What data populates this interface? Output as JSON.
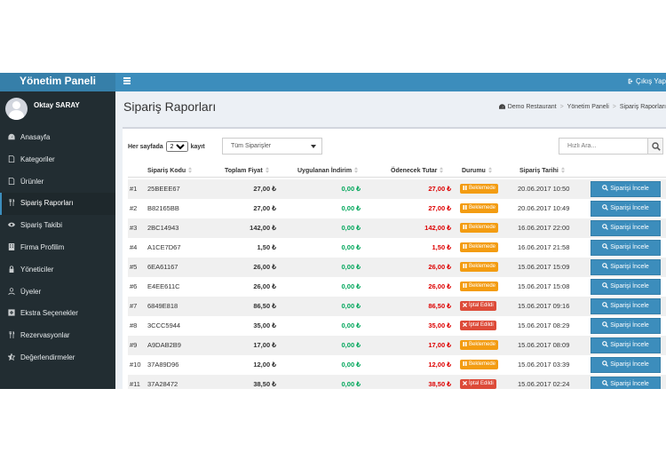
{
  "app": {
    "title": "Yönetim Paneli",
    "logout_label": "Çıkış Yap"
  },
  "user": {
    "name": "Oktay SARAY"
  },
  "sidebar": {
    "items": [
      {
        "label": "Anasayfa",
        "icon": "dashboard-icon"
      },
      {
        "label": "Kategoriler",
        "icon": "file-icon"
      },
      {
        "label": "Ürünler",
        "icon": "file-o-icon"
      },
      {
        "label": "Sipariş Raporları",
        "icon": "cutlery-icon",
        "active": true
      },
      {
        "label": "Sipariş Takibi",
        "icon": "eye-icon"
      },
      {
        "label": "Firma Profilim",
        "icon": "building-icon"
      },
      {
        "label": "Yöneticiler",
        "icon": "lock-icon"
      },
      {
        "label": "Üyeler",
        "icon": "user-icon"
      },
      {
        "label": "Ekstra Seçenekler",
        "icon": "plus-square-icon"
      },
      {
        "label": "Rezervasyonlar",
        "icon": "cutlery-icon"
      },
      {
        "label": "Değerlendirmeler",
        "icon": "star-half-icon"
      }
    ]
  },
  "page": {
    "title": "Sipariş Raporları",
    "breadcrumb": [
      "Demo Restaurant",
      "Yönetim Paneli",
      "Sipariş Raporları"
    ]
  },
  "controls": {
    "per_page_label": "Her sayfada",
    "per_page_value": "20",
    "per_page_suffix": "kayıt",
    "filter_value": "Tüm Siparişler",
    "search_placeholder": "Hızlı Ara..."
  },
  "table": {
    "columns": [
      "Sipariş Kodu",
      "Toplam Fiyat",
      "Uygulanan İndirim",
      "Ödenecek Tutar",
      "Durumu",
      "Sipariş Tarihi"
    ],
    "action_label": "Siparişi İncele",
    "currency": "₺",
    "rows": [
      {
        "num": "#1",
        "code": "25BEEE67",
        "total": "27,00",
        "discount": "0,00",
        "pay": "27,00",
        "status": "Beklemede",
        "status_type": "wait",
        "date": "20.06.2017 10:50"
      },
      {
        "num": "#2",
        "code": "B82165BB",
        "total": "27,00",
        "discount": "0,00",
        "pay": "27,00",
        "status": "Beklemede",
        "status_type": "wait",
        "date": "20.06.2017 10:49"
      },
      {
        "num": "#3",
        "code": "2BC14943",
        "total": "142,00",
        "discount": "0,00",
        "pay": "142,00",
        "status": "Beklemede",
        "status_type": "wait",
        "date": "16.06.2017 22:00"
      },
      {
        "num": "#4",
        "code": "A1CE7D67",
        "total": "1,50",
        "discount": "0,00",
        "pay": "1,50",
        "status": "Beklemede",
        "status_type": "wait",
        "date": "16.06.2017 21:58"
      },
      {
        "num": "#5",
        "code": "6EA61167",
        "total": "26,00",
        "discount": "0,00",
        "pay": "26,00",
        "status": "Beklemede",
        "status_type": "wait",
        "date": "15.06.2017 15:09"
      },
      {
        "num": "#6",
        "code": "E4EE611C",
        "total": "26,00",
        "discount": "0,00",
        "pay": "26,00",
        "status": "Beklemede",
        "status_type": "wait",
        "date": "15.06.2017 15:08"
      },
      {
        "num": "#7",
        "code": "6849E818",
        "total": "86,50",
        "discount": "0,00",
        "pay": "86,50",
        "status": "İptal Edildi",
        "status_type": "cancel",
        "date": "15.06.2017 09:16"
      },
      {
        "num": "#8",
        "code": "3CCC5944",
        "total": "35,00",
        "discount": "0,00",
        "pay": "35,00",
        "status": "İptal Edildi",
        "status_type": "cancel",
        "date": "15.06.2017 08:29"
      },
      {
        "num": "#9",
        "code": "A9DAB2B9",
        "total": "17,00",
        "discount": "0,00",
        "pay": "17,00",
        "status": "Beklemede",
        "status_type": "wait",
        "date": "15.06.2017 08:09"
      },
      {
        "num": "#10",
        "code": "37A89D96",
        "total": "12,00",
        "discount": "0,00",
        "pay": "12,00",
        "status": "Beklemede",
        "status_type": "wait",
        "date": "15.06.2017 03:39"
      },
      {
        "num": "#11",
        "code": "37A28472",
        "total": "38,50",
        "discount": "0,00",
        "pay": "38,50",
        "status": "İptal Edildi",
        "status_type": "cancel",
        "date": "15.06.2017 02:24"
      }
    ]
  },
  "colors": {
    "header": "#3c8dbc",
    "sidebar": "#222d32",
    "discount": "#00a65a",
    "pay": "#dd0000",
    "wait": "#f39c12",
    "cancel": "#dd4b39"
  }
}
